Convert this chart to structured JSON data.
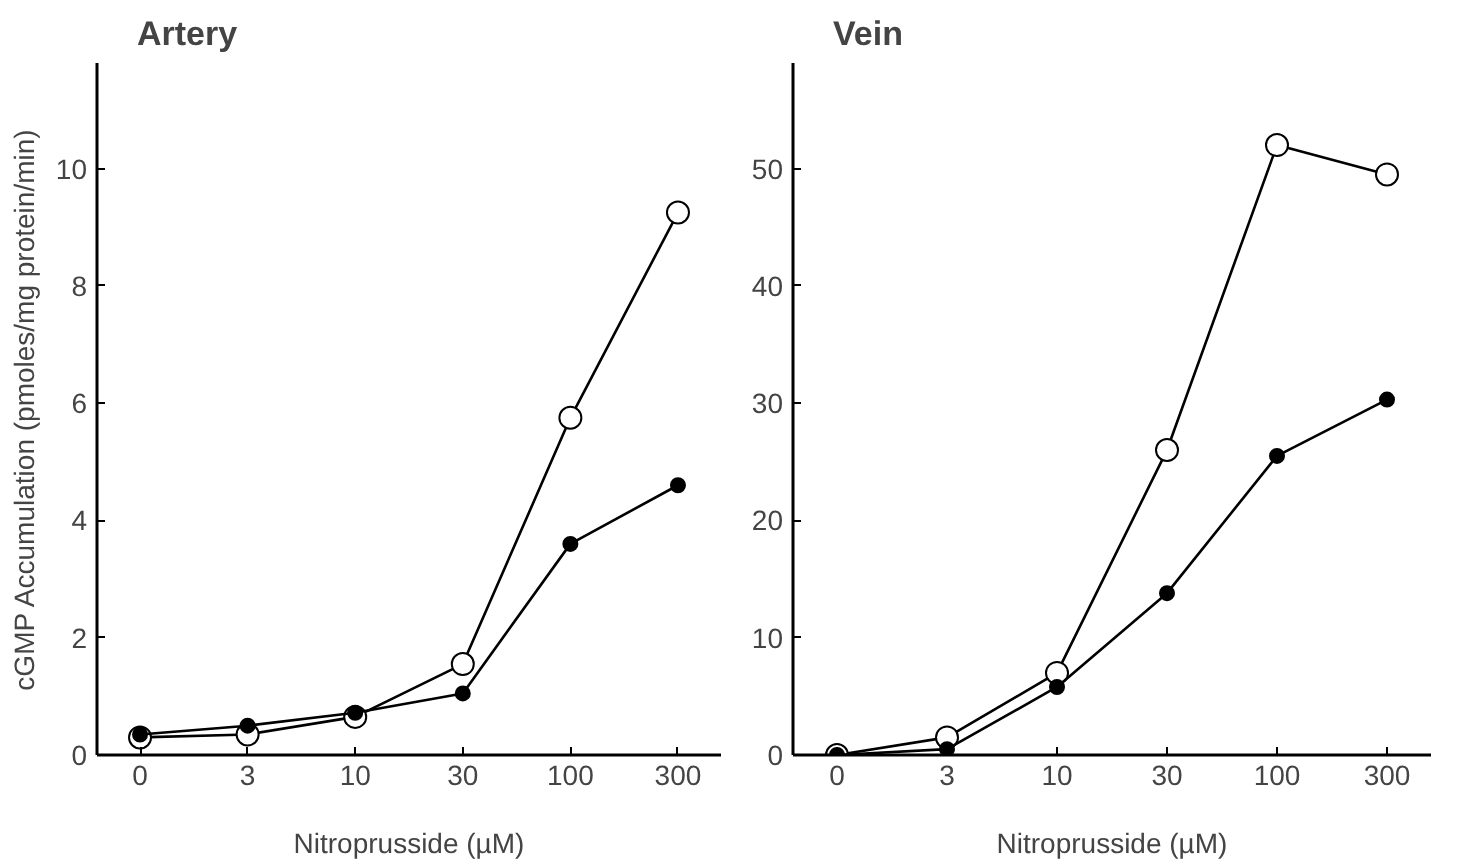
{
  "chart_data": [
    {
      "type": "line",
      "title": "Artery",
      "xlabel": "Nitroprusside (µM)",
      "ylabel": "cGMP Accumulation (pmoles/mg protein/min)",
      "categories": [
        "0",
        "3",
        "10",
        "30",
        "100",
        "300"
      ],
      "ylim": [
        0,
        11.8
      ],
      "yticks": [
        0,
        2,
        4,
        6,
        8,
        10
      ],
      "grid": false,
      "marker": "circle",
      "line_style": "solid",
      "series": [
        {
          "color": "#ffffff",
          "values": [
            0.3,
            0.35,
            0.65,
            1.55,
            5.75,
            9.25
          ]
        },
        {
          "color": "#000000",
          "values": [
            0.35,
            0.5,
            0.72,
            1.05,
            3.6,
            4.6
          ]
        }
      ]
    },
    {
      "type": "line",
      "title": "Vein",
      "xlabel": "Nitroprusside (µM)",
      "categories": [
        "0",
        "3",
        "10",
        "30",
        "100",
        "300"
      ],
      "ylim": [
        0,
        59
      ],
      "yticks": [
        0,
        10,
        20,
        30,
        40,
        50
      ],
      "grid": false,
      "marker": "circle",
      "line_style": "solid",
      "series": [
        {
          "color": "#ffffff",
          "values": [
            0,
            1.5,
            7,
            26,
            52,
            49.5
          ]
        },
        {
          "color": "#000000",
          "values": [
            0,
            0.5,
            5.8,
            13.8,
            25.5,
            30.3
          ]
        }
      ]
    }
  ]
}
